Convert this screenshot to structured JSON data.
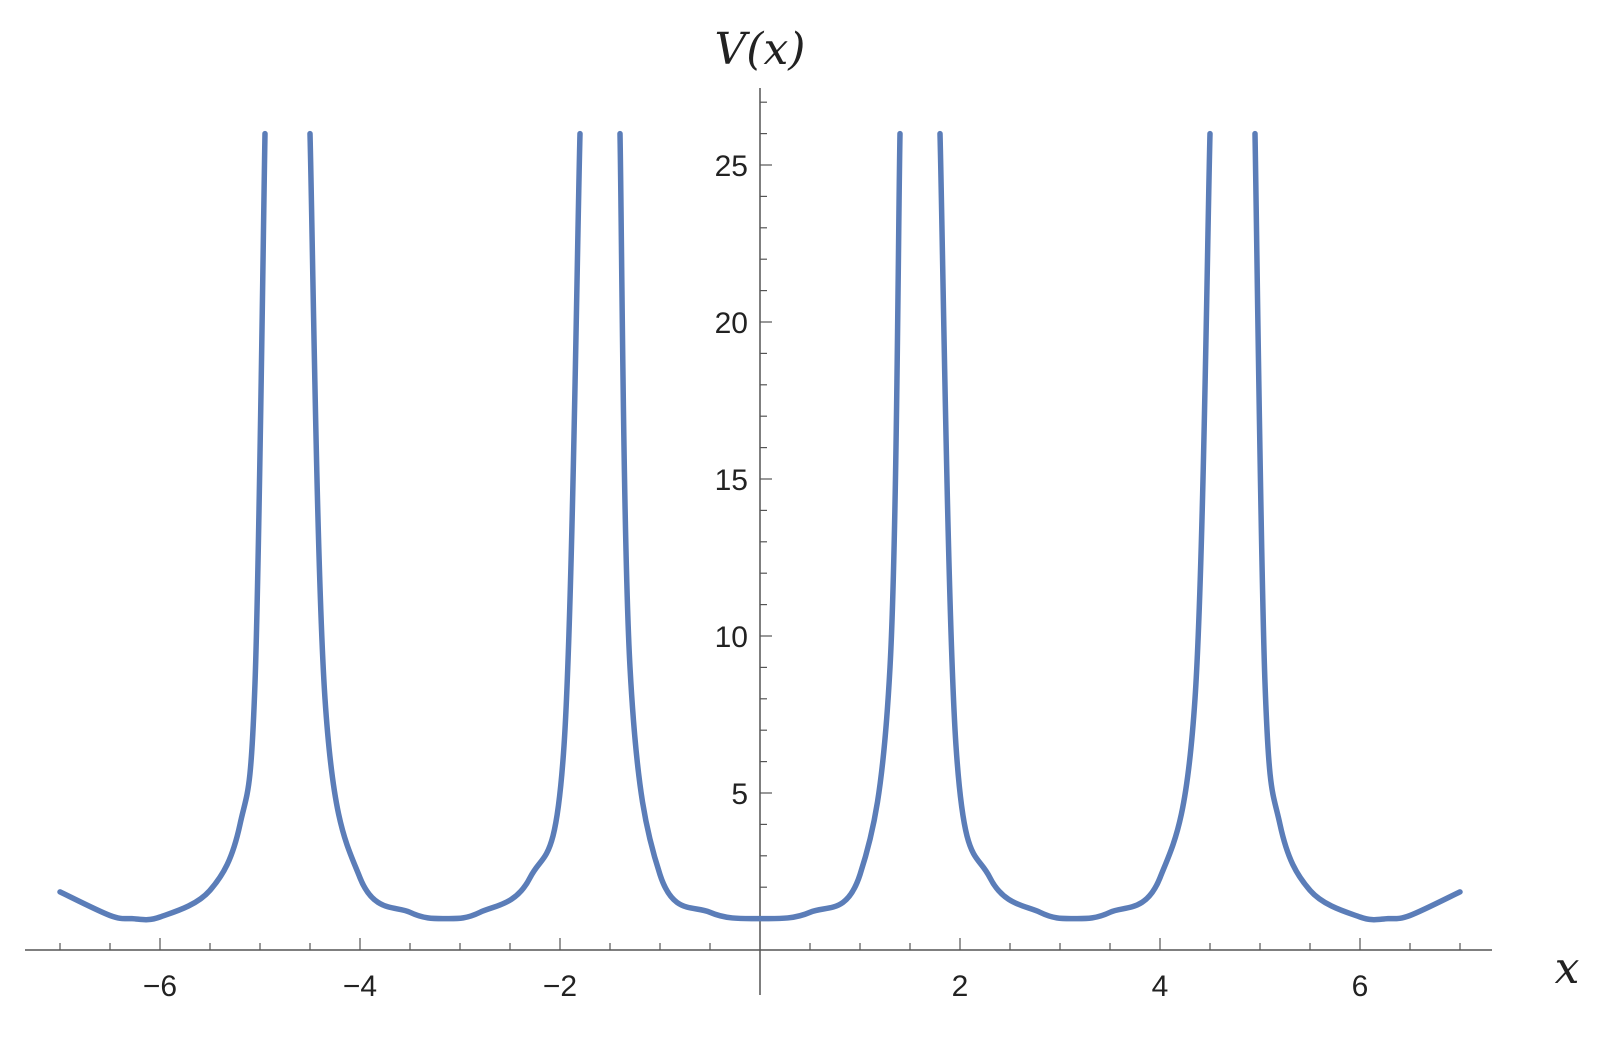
{
  "chart_data": {
    "type": "line",
    "xlabel": "x",
    "ylabel": "V(x)",
    "xlim": [
      -7.05,
      7.35
    ],
    "ylim": [
      0,
      27.3
    ],
    "x_ticks": [
      -6,
      -4,
      -2,
      2,
      4,
      6
    ],
    "y_ticks": [
      5,
      10,
      15,
      20,
      25
    ],
    "x_minor_step": 0.5,
    "y_minor_step": 1,
    "grid": false,
    "legend": "none",
    "series": [
      {
        "color": "#5b7db8",
        "clip_max": 26,
        "x": [
          -7.0,
          -6.5,
          -6.28,
          -6.0,
          -5.5,
          -5.2,
          -5.05,
          -4.95,
          -4.5,
          -4.35,
          -4.0,
          -3.5,
          -3.14,
          -2.8,
          -2.3,
          -1.96,
          -1.8,
          -1.4,
          -1.3,
          -1.0,
          -0.5,
          0.0,
          0.5,
          1.0,
          1.3,
          1.4,
          1.8,
          1.96,
          2.3,
          2.8,
          3.14,
          3.5,
          4.0,
          4.35,
          4.5,
          4.95,
          5.05,
          5.2,
          5.5,
          6.0,
          6.28,
          6.5,
          7.0
        ],
        "y": [
          1.85,
          1.1,
          1.0,
          1.05,
          1.9,
          4.0,
          8.5,
          26,
          26,
          8.0,
          2.3,
          1.2,
          1.0,
          1.2,
          2.3,
          6.5,
          26,
          26,
          9.0,
          2.4,
          1.2,
          1.0,
          1.2,
          2.4,
          9.0,
          26,
          26,
          6.5,
          2.3,
          1.2,
          1.0,
          1.2,
          2.3,
          8.0,
          26,
          26,
          8.5,
          4.0,
          1.9,
          1.05,
          1.0,
          1.1,
          1.85
        ]
      }
    ]
  }
}
